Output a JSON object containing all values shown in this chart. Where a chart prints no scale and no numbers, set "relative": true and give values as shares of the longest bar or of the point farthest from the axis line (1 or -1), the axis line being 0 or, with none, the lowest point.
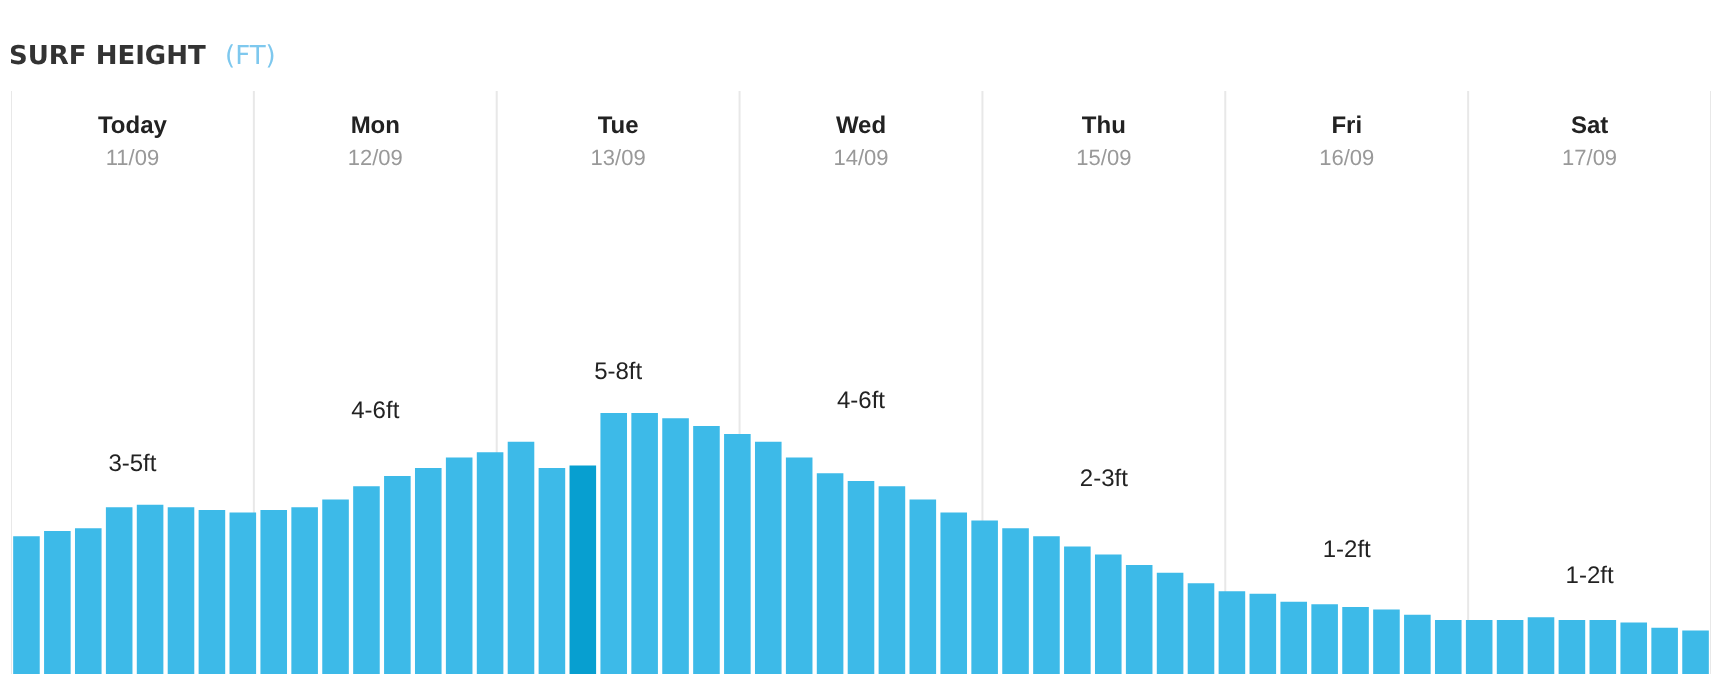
{
  "chart_data": {
    "type": "bar",
    "title": "SURF HEIGHT",
    "subtitle": "(FT)",
    "relative": true,
    "grid": "x",
    "categories": [
      null,
      null,
      null,
      null,
      null,
      null,
      null,
      null,
      null,
      null,
      null,
      null,
      null,
      null,
      null,
      null,
      null,
      null,
      null,
      null,
      null,
      null,
      null,
      null,
      null,
      null,
      null,
      null,
      null,
      null,
      null,
      null,
      null,
      null,
      null,
      null,
      null,
      null,
      null,
      null,
      null,
      null,
      null,
      null,
      null,
      null,
      null,
      null,
      null,
      null,
      null,
      null,
      null,
      null,
      null
    ],
    "values": [
      0.53,
      0.55,
      0.56,
      0.64,
      0.65,
      0.64,
      0.63,
      0.62,
      0.63,
      0.64,
      0.67,
      0.72,
      0.76,
      0.79,
      0.83,
      0.85,
      0.89,
      0.79,
      0.8,
      1,
      1,
      0.98,
      0.95,
      0.92,
      0.89,
      0.83,
      0.77,
      0.74,
      0.72,
      0.67,
      0.62,
      0.59,
      0.56,
      0.53,
      0.49,
      0.46,
      0.42,
      0.39,
      0.35,
      0.32,
      0.31,
      0.28,
      0.27,
      0.26,
      0.25,
      0.23,
      0.21,
      0.21,
      0.21,
      0.22,
      0.21,
      0.21,
      0.2,
      0.18,
      0.17
    ],
    "colors": [
      "#3dbae8",
      "#3dbae8",
      "#3dbae8",
      "#3dbae8",
      "#3dbae8",
      "#3dbae8",
      "#3dbae8",
      "#3dbae8",
      "#3dbae8",
      "#3dbae8",
      "#3dbae8",
      "#3dbae8",
      "#3dbae8",
      "#3dbae8",
      "#3dbae8",
      "#3dbae8",
      "#3dbae8",
      "#3dbae8",
      "#079fd0",
      "#3dbae8",
      "#3dbae8",
      "#3dbae8",
      "#3dbae8",
      "#3dbae8",
      "#3dbae8",
      "#3dbae8",
      "#3dbae8",
      "#3dbae8",
      "#3dbae8",
      "#3dbae8",
      "#3dbae8",
      "#3dbae8",
      "#3dbae8",
      "#3dbae8",
      "#3dbae8",
      "#3dbae8",
      "#3dbae8",
      "#3dbae8",
      "#3dbae8",
      "#3dbae8",
      "#3dbae8",
      "#3dbae8",
      "#3dbae8",
      "#3dbae8",
      "#3dbae8",
      "#3dbae8",
      "#3dbae8",
      "#3dbae8",
      "#3dbae8",
      "#3dbae8",
      "#3dbae8",
      "#3dbae8",
      "#3dbae8",
      "#3dbae8",
      "#3dbae8"
    ],
    "annotations": [
      "Today\n11/09",
      "Mon\n12/09",
      "Tue\n13/09",
      "Wed\n14/09",
      "Thu\n15/09",
      "Fri\n16/09",
      "Sat\n17/09",
      "3-5ft",
      "4-6ft",
      "5-8ft",
      "4-6ft",
      "2-3ft",
      "1-2ft",
      "1-2ft"
    ]
  }
}
